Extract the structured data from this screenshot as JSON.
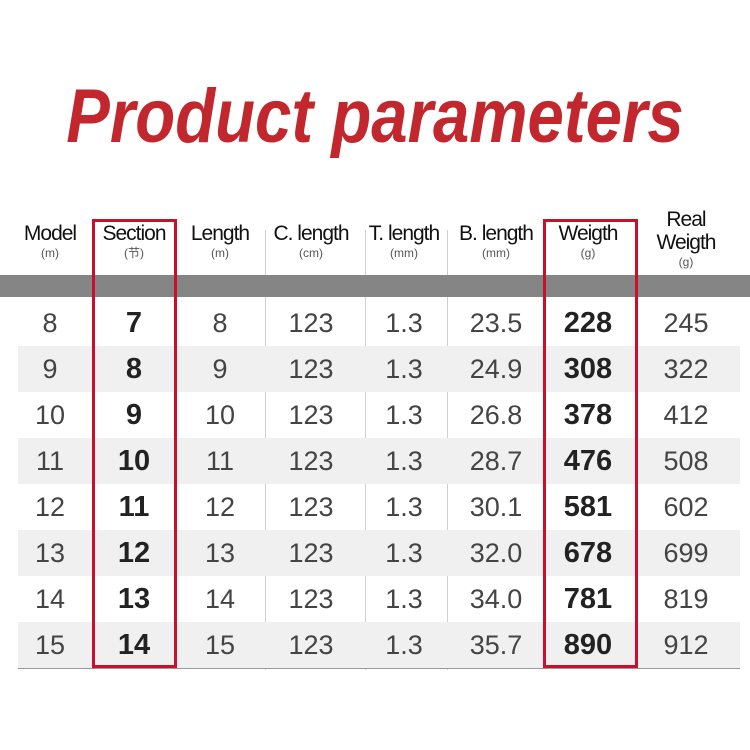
{
  "title": "Product parameters",
  "columns": [
    {
      "label": "Model",
      "unit": "(m)"
    },
    {
      "label": "Section",
      "unit": "(节)"
    },
    {
      "label": "Length",
      "unit": "(m)"
    },
    {
      "label": "C. length",
      "unit": "(cm)"
    },
    {
      "label": "T. length",
      "unit": "(mm)"
    },
    {
      "label": "B. length",
      "unit": "(mm)"
    },
    {
      "label": "Weigth",
      "unit": "(g)"
    },
    {
      "label": "Real Weigth",
      "unit": "(g)"
    }
  ],
  "rows": [
    [
      "8",
      "7",
      "8",
      "123",
      "1.3",
      "23.5",
      "228",
      "245"
    ],
    [
      "9",
      "8",
      "9",
      "123",
      "1.3",
      "24.9",
      "308",
      "322"
    ],
    [
      "10",
      "9",
      "10",
      "123",
      "1.3",
      "26.8",
      "378",
      "412"
    ],
    [
      "11",
      "10",
      "11",
      "123",
      "1.3",
      "28.7",
      "476",
      "508"
    ],
    [
      "12",
      "11",
      "12",
      "123",
      "1.3",
      "30.1",
      "581",
      "602"
    ],
    [
      "13",
      "12",
      "13",
      "123",
      "1.3",
      "32.0",
      "678",
      "699"
    ],
    [
      "14",
      "13",
      "14",
      "123",
      "1.3",
      "34.0",
      "781",
      "819"
    ],
    [
      "15",
      "14",
      "15",
      "123",
      "1.3",
      "35.7",
      "890",
      "912"
    ]
  ],
  "highlight_color": "#c8102e",
  "title_color": "#c1272d"
}
